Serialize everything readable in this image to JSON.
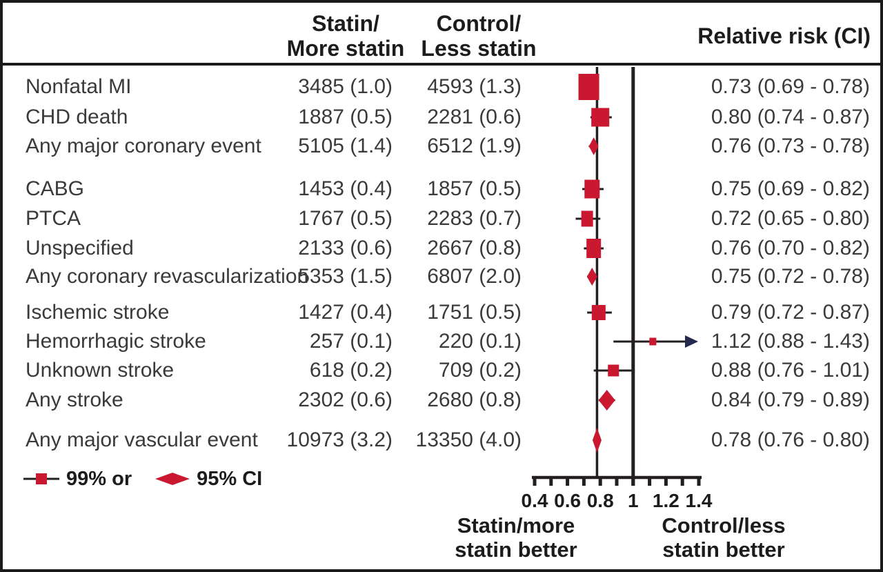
{
  "figure": {
    "kind": "forest plot",
    "header": {
      "statin_line1": "Statin/",
      "statin_line2": "More statin",
      "control_line1": "Control/",
      "control_line2": "Less statin",
      "relative_risk": "Relative risk (CI)"
    }
  },
  "chart_data": {
    "type": "forest",
    "title": "",
    "x_axis": {
      "min": 0.4,
      "max": 1.4,
      "minor_tick_step": 0.1,
      "labeled_ticks": [
        0.4,
        0.6,
        0.8,
        1,
        1.2,
        1.4
      ],
      "tick_labels": [
        "0.4",
        "0.6",
        "0.8",
        "1",
        "1.2",
        "1.4"
      ],
      "reference_line": 1.0,
      "overall_effect_line": 0.78,
      "scale": "linear"
    },
    "rows": [
      {
        "label": "Nonfatal MI",
        "statin": "3485 (1.0)",
        "control": "4593 (1.3)",
        "rr_text": "0.73 (0.69 - 0.78)",
        "rr": 0.73,
        "lo": 0.69,
        "hi": 0.78,
        "marker": "square",
        "mw": 30,
        "mh": 38,
        "group": 1
      },
      {
        "label": "CHD death",
        "statin": "1887 (0.5)",
        "control": "2281 (0.6)",
        "rr_text": "0.80 (0.74 - 0.87)",
        "rr": 0.8,
        "lo": 0.74,
        "hi": 0.87,
        "marker": "square",
        "mw": 26,
        "mh": 27,
        "group": 1
      },
      {
        "label": "Any major coronary event",
        "statin": "5105 (1.4)",
        "control": "6512 (1.9)",
        "rr_text": "0.76 (0.73 - 0.78)",
        "rr": 0.76,
        "lo": 0.73,
        "hi": 0.78,
        "marker": "diamond",
        "mw": 14,
        "mh": 26,
        "group": 1
      },
      {
        "label": "CABG",
        "statin": "1453 (0.4)",
        "control": "1857 (0.5)",
        "rr_text": "0.75 (0.69 - 0.82)",
        "rr": 0.75,
        "lo": 0.69,
        "hi": 0.82,
        "marker": "square",
        "mw": 22,
        "mh": 27,
        "group": 2
      },
      {
        "label": "PTCA",
        "statin": "1767 (0.5)",
        "control": "2283 (0.7)",
        "rr_text": "0.72 (0.65 - 0.80)",
        "rr": 0.72,
        "lo": 0.65,
        "hi": 0.8,
        "marker": "square",
        "mw": 17,
        "mh": 23,
        "group": 2
      },
      {
        "label": "Unspecified",
        "statin": "2133 (0.6)",
        "control": "2667 (0.8)",
        "rr_text": "0.76 (0.70 - 0.82)",
        "rr": 0.76,
        "lo": 0.7,
        "hi": 0.82,
        "marker": "square",
        "mw": 21,
        "mh": 28,
        "group": 2
      },
      {
        "label": "Any coronary revascularization",
        "statin": "5353 (1.5)",
        "control": "6807 (2.0)",
        "rr_text": "0.75 (0.72 - 0.78)",
        "rr": 0.75,
        "lo": 0.72,
        "hi": 0.78,
        "marker": "diamond",
        "mw": 15,
        "mh": 26,
        "group": 2
      },
      {
        "label": "Ischemic stroke",
        "statin": "1427 (0.4)",
        "control": "1751 (0.5)",
        "rr_text": "0.79 (0.72 - 0.87)",
        "rr": 0.79,
        "lo": 0.72,
        "hi": 0.87,
        "marker": "square",
        "mw": 20,
        "mh": 22,
        "group": 3
      },
      {
        "label": "Hemorrhagic stroke",
        "statin": "257 (0.1)",
        "control": "220 (0.1)",
        "rr_text": "1.12 (0.88 - 1.43)",
        "rr": 1.12,
        "lo": 0.88,
        "hi": 1.43,
        "marker": "square",
        "mw": 10,
        "mh": 11,
        "arrow": true,
        "group": 3
      },
      {
        "label": "Unknown stroke",
        "statin": "618 (0.2)",
        "control": "709 (0.2)",
        "rr_text": "0.88 (0.76 - 1.01)",
        "rr": 0.88,
        "lo": 0.76,
        "hi": 1.01,
        "marker": "square",
        "mw": 16,
        "mh": 17,
        "group": 3
      },
      {
        "label": "Any stroke",
        "statin": "2302 (0.6)",
        "control": "2680 (0.8)",
        "rr_text": "0.84 (0.79 - 0.89)",
        "rr": 0.84,
        "lo": 0.79,
        "hi": 0.89,
        "marker": "diamond",
        "mw": 24,
        "mh": 30,
        "group": 3
      },
      {
        "label": "Any major vascular event",
        "statin": "10973 (3.2)",
        "control": "13350 (4.0)",
        "rr_text": "0.78 (0.76 - 0.80)",
        "rr": 0.78,
        "lo": 0.76,
        "hi": 0.8,
        "marker": "diamond",
        "mw": 13,
        "mh": 36,
        "group": 4
      }
    ],
    "footer": {
      "left_line1": "Statin/more",
      "left_line2": "statin better",
      "right_line1": "Control/less",
      "right_line2": "statin better"
    },
    "legend": {
      "square_label": "99% or",
      "diamond_label": "95% CI"
    },
    "colors": {
      "marker_red": "#C9182F",
      "line_dark": "#231F20",
      "arrow_navy": "#232A4D"
    }
  }
}
